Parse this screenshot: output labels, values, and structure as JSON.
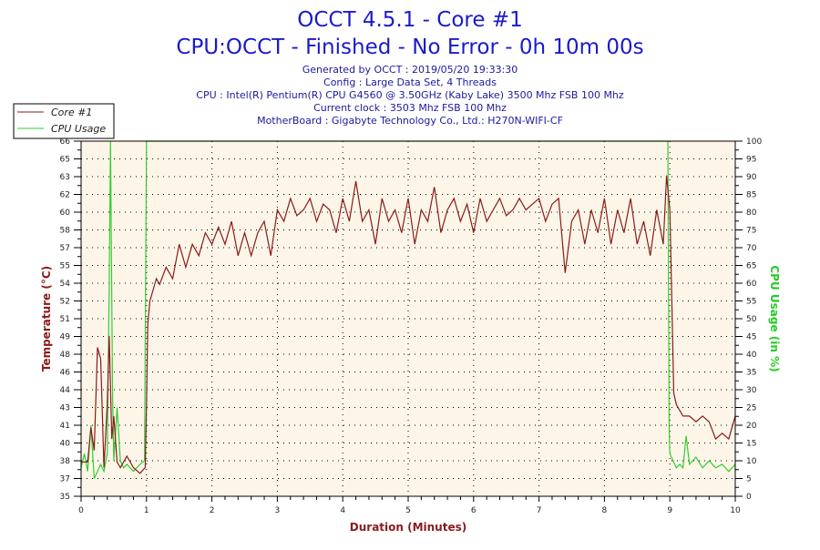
{
  "header": {
    "title": "OCCT 4.5.1 - Core #1",
    "subtitle": "CPU:OCCT - Finished - No Error - 0h 10m 00s",
    "info_lines": [
      "Generated by OCCT : 2019/05/20 19:33:30",
      "Config : Large Data Set, 4 Threads",
      "CPU : Intel(R) Pentium(R) CPU G4560 @ 3.50GHz (Kaby Lake) 3500 Mhz FSB 100 Mhz",
      "Current clock : 3503 Mhz FSB 100 Mhz",
      "MotherBoard : Gigabyte Technology Co., Ltd.: H270N-WIFI-CF"
    ]
  },
  "chart_data": {
    "type": "line",
    "xlabel": "Duration (Minutes)",
    "ylabel_left": "Temperature (°C)",
    "ylabel_right": "CPU Usage (in %)",
    "xlim": [
      0,
      10
    ],
    "ylim_left": [
      35,
      66
    ],
    "ylim_right": [
      0,
      100
    ],
    "x_ticks": [
      "0",
      "1",
      "2",
      "3",
      "4",
      "5",
      "6",
      "7",
      "8",
      "9",
      "10"
    ],
    "y_left_ticks": [
      "35",
      "37",
      "38",
      "40",
      "41",
      "43",
      "44",
      "46",
      "48",
      "49",
      "51",
      "52",
      "54",
      "55",
      "57",
      "58",
      "60",
      "62",
      "63",
      "65",
      "66"
    ],
    "y_right_ticks": [
      "0",
      "5",
      "10",
      "15",
      "20",
      "25",
      "30",
      "35",
      "40",
      "45",
      "50",
      "55",
      "60",
      "65",
      "70",
      "75",
      "80",
      "85",
      "90",
      "95",
      "100"
    ],
    "grid": true,
    "legend_position": "top-left",
    "colors": {
      "temperature": "#8b1a1a",
      "cpu": "#33cc33",
      "plot_bg": "#fdf6e8",
      "xlabel": "#8b1a1a",
      "ylabel_left": "#8b1a1a",
      "ylabel_right": "#22cc22"
    },
    "series": [
      {
        "name": "Core #1",
        "axis": "left",
        "points": [
          [
            0,
            38
          ],
          [
            0.1,
            38
          ],
          [
            0.15,
            41
          ],
          [
            0.2,
            39
          ],
          [
            0.25,
            48
          ],
          [
            0.3,
            47
          ],
          [
            0.35,
            37.5
          ],
          [
            0.4,
            43
          ],
          [
            0.43,
            49
          ],
          [
            0.47,
            40
          ],
          [
            0.5,
            42
          ],
          [
            0.55,
            38
          ],
          [
            0.6,
            37.5
          ],
          [
            0.7,
            38.5
          ],
          [
            0.8,
            37.5
          ],
          [
            0.9,
            37
          ],
          [
            0.98,
            37.5
          ],
          [
            1.0,
            43
          ],
          [
            1.02,
            50
          ],
          [
            1.05,
            52
          ],
          [
            1.1,
            53
          ],
          [
            1.15,
            54
          ],
          [
            1.2,
            53.5
          ],
          [
            1.3,
            55
          ],
          [
            1.4,
            54
          ],
          [
            1.5,
            57
          ],
          [
            1.6,
            55
          ],
          [
            1.7,
            57
          ],
          [
            1.8,
            56
          ],
          [
            1.9,
            58
          ],
          [
            2.0,
            57
          ],
          [
            2.1,
            58.5
          ],
          [
            2.2,
            57
          ],
          [
            2.3,
            59
          ],
          [
            2.4,
            56
          ],
          [
            2.5,
            58
          ],
          [
            2.6,
            56
          ],
          [
            2.7,
            58
          ],
          [
            2.8,
            59
          ],
          [
            2.9,
            56
          ],
          [
            3.0,
            60
          ],
          [
            3.1,
            59
          ],
          [
            3.2,
            61
          ],
          [
            3.3,
            59.5
          ],
          [
            3.4,
            60
          ],
          [
            3.5,
            61
          ],
          [
            3.6,
            59
          ],
          [
            3.7,
            60.5
          ],
          [
            3.8,
            60
          ],
          [
            3.9,
            58
          ],
          [
            4.0,
            61
          ],
          [
            4.1,
            59
          ],
          [
            4.2,
            62.5
          ],
          [
            4.3,
            59
          ],
          [
            4.4,
            60
          ],
          [
            4.5,
            57
          ],
          [
            4.6,
            61
          ],
          [
            4.7,
            59
          ],
          [
            4.8,
            60
          ],
          [
            4.9,
            58
          ],
          [
            5.0,
            61
          ],
          [
            5.1,
            57
          ],
          [
            5.2,
            60
          ],
          [
            5.3,
            59
          ],
          [
            5.4,
            62
          ],
          [
            5.5,
            58
          ],
          [
            5.6,
            60
          ],
          [
            5.7,
            61
          ],
          [
            5.8,
            59
          ],
          [
            5.9,
            60.5
          ],
          [
            6.0,
            58
          ],
          [
            6.1,
            61
          ],
          [
            6.2,
            59
          ],
          [
            6.3,
            60
          ],
          [
            6.4,
            61
          ],
          [
            6.5,
            59.5
          ],
          [
            6.6,
            60
          ],
          [
            6.7,
            61
          ],
          [
            6.8,
            60
          ],
          [
            6.9,
            60.5
          ],
          [
            7.0,
            61
          ],
          [
            7.1,
            59
          ],
          [
            7.2,
            60.5
          ],
          [
            7.3,
            61
          ],
          [
            7.4,
            54.5
          ],
          [
            7.5,
            59
          ],
          [
            7.6,
            60
          ],
          [
            7.7,
            57
          ],
          [
            7.8,
            60
          ],
          [
            7.9,
            58
          ],
          [
            8.0,
            61
          ],
          [
            8.1,
            57
          ],
          [
            8.2,
            60
          ],
          [
            8.3,
            58
          ],
          [
            8.4,
            61
          ],
          [
            8.5,
            57
          ],
          [
            8.6,
            59
          ],
          [
            8.7,
            56
          ],
          [
            8.8,
            60
          ],
          [
            8.9,
            57
          ],
          [
            8.95,
            63
          ],
          [
            9.0,
            60
          ],
          [
            9.03,
            52
          ],
          [
            9.06,
            44
          ],
          [
            9.1,
            43
          ],
          [
            9.2,
            42
          ],
          [
            9.3,
            42
          ],
          [
            9.4,
            41.5
          ],
          [
            9.5,
            42
          ],
          [
            9.6,
            41.5
          ],
          [
            9.7,
            40
          ],
          [
            9.8,
            40.5
          ],
          [
            9.9,
            40
          ],
          [
            10.0,
            42
          ]
        ]
      },
      {
        "name": "CPU Usage",
        "axis": "right",
        "points": [
          [
            0,
            8
          ],
          [
            0.05,
            12
          ],
          [
            0.1,
            7
          ],
          [
            0.15,
            20
          ],
          [
            0.2,
            5
          ],
          [
            0.25,
            7
          ],
          [
            0.3,
            9
          ],
          [
            0.35,
            7
          ],
          [
            0.4,
            12
          ],
          [
            0.43,
            60
          ],
          [
            0.45,
            100
          ],
          [
            0.48,
            30
          ],
          [
            0.5,
            10
          ],
          [
            0.55,
            25
          ],
          [
            0.6,
            10
          ],
          [
            0.65,
            8
          ],
          [
            0.7,
            9
          ],
          [
            0.8,
            7
          ],
          [
            0.9,
            9
          ],
          [
            0.97,
            10
          ],
          [
            1.0,
            100
          ],
          [
            8.97,
            100
          ],
          [
            8.99,
            18
          ],
          [
            9.0,
            12
          ],
          [
            9.05,
            10
          ],
          [
            9.1,
            8
          ],
          [
            9.15,
            9
          ],
          [
            9.2,
            8
          ],
          [
            9.25,
            17
          ],
          [
            9.3,
            9
          ],
          [
            9.4,
            11
          ],
          [
            9.5,
            8
          ],
          [
            9.6,
            10
          ],
          [
            9.7,
            8
          ],
          [
            9.8,
            9
          ],
          [
            9.9,
            7
          ],
          [
            10,
            9
          ]
        ]
      }
    ]
  }
}
